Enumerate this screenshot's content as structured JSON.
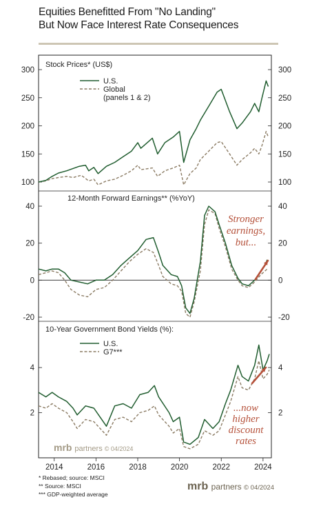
{
  "title_line1": "Equities Benefitted From \"No Landing\"",
  "title_line2": "But Now Face Interest Rate Consequences",
  "colors": {
    "us": "#1f5c2e",
    "global": "#8a7a62",
    "arrow": "#b5513a",
    "annotation": "#b5513a"
  },
  "chart_data": [
    {
      "type": "line",
      "title": "Stock Prices* (US$)",
      "ylim": [
        100,
        300
      ],
      "yticks": [
        100,
        150,
        200,
        250,
        300
      ],
      "legend": {
        "placement": "top-left",
        "entries": [
          "U.S.",
          "Global",
          "(panels 1 & 2)"
        ]
      },
      "series": [
        {
          "name": "U.S.",
          "points": [
            [
              2013.25,
              100
            ],
            [
              2013.6,
              103
            ],
            [
              2013.9,
              110
            ],
            [
              2014.2,
              116
            ],
            [
              2014.6,
              120
            ],
            [
              2014.9,
              124
            ],
            [
              2015.2,
              128
            ],
            [
              2015.5,
              130
            ],
            [
              2015.65,
              120
            ],
            [
              2015.9,
              126
            ],
            [
              2016.1,
              115
            ],
            [
              2016.5,
              128
            ],
            [
              2016.9,
              135
            ],
            [
              2017.3,
              145
            ],
            [
              2017.7,
              155
            ],
            [
              2018.0,
              170
            ],
            [
              2018.15,
              160
            ],
            [
              2018.7,
              178
            ],
            [
              2018.95,
              150
            ],
            [
              2019.3,
              170
            ],
            [
              2019.7,
              180
            ],
            [
              2020.0,
              190
            ],
            [
              2020.2,
              135
            ],
            [
              2020.5,
              175
            ],
            [
              2020.8,
              195
            ],
            [
              2021.0,
              210
            ],
            [
              2021.4,
              235
            ],
            [
              2021.8,
              260
            ],
            [
              2022.0,
              265
            ],
            [
              2022.4,
              225
            ],
            [
              2022.75,
              195
            ],
            [
              2023.0,
              205
            ],
            [
              2023.4,
              225
            ],
            [
              2023.6,
              240
            ],
            [
              2023.8,
              225
            ],
            [
              2023.95,
              250
            ],
            [
              2024.15,
              280
            ],
            [
              2024.25,
              270
            ]
          ]
        },
        {
          "name": "Global",
          "points": [
            [
              2013.25,
              100
            ],
            [
              2013.6,
              102
            ],
            [
              2013.9,
              106
            ],
            [
              2014.2,
              108
            ],
            [
              2014.6,
              110
            ],
            [
              2014.9,
              108
            ],
            [
              2015.3,
              112
            ],
            [
              2015.65,
              102
            ],
            [
              2015.9,
              105
            ],
            [
              2016.1,
              95
            ],
            [
              2016.5,
              102
            ],
            [
              2016.9,
              105
            ],
            [
              2017.3,
              112
            ],
            [
              2017.7,
              120
            ],
            [
              2018.0,
              130
            ],
            [
              2018.15,
              122
            ],
            [
              2018.7,
              125
            ],
            [
              2018.95,
              110
            ],
            [
              2019.3,
              120
            ],
            [
              2019.7,
              125
            ],
            [
              2020.0,
              130
            ],
            [
              2020.2,
              95
            ],
            [
              2020.5,
              115
            ],
            [
              2020.8,
              125
            ],
            [
              2021.0,
              140
            ],
            [
              2021.4,
              155
            ],
            [
              2021.8,
              170
            ],
            [
              2022.0,
              172
            ],
            [
              2022.4,
              150
            ],
            [
              2022.75,
              130
            ],
            [
              2023.0,
              140
            ],
            [
              2023.4,
              152
            ],
            [
              2023.6,
              160
            ],
            [
              2023.8,
              150
            ],
            [
              2023.95,
              165
            ],
            [
              2024.15,
              190
            ],
            [
              2024.25,
              180
            ]
          ]
        }
      ]
    },
    {
      "type": "line",
      "title": "12-Month Forward Earnings** (%YoY)",
      "ylim": [
        -20,
        40
      ],
      "yticks": [
        -20,
        0,
        20,
        40
      ],
      "annotation": [
        "Stronger",
        "earnings,",
        "but..."
      ],
      "series": [
        {
          "name": "U.S.",
          "points": [
            [
              2013.25,
              6
            ],
            [
              2013.6,
              5
            ],
            [
              2013.9,
              6
            ],
            [
              2014.2,
              6
            ],
            [
              2014.5,
              4
            ],
            [
              2014.8,
              0
            ],
            [
              2015.2,
              -1
            ],
            [
              2015.6,
              -2
            ],
            [
              2016.0,
              0
            ],
            [
              2016.4,
              0
            ],
            [
              2016.8,
              3
            ],
            [
              2017.2,
              8
            ],
            [
              2017.6,
              12
            ],
            [
              2018.0,
              16
            ],
            [
              2018.4,
              22
            ],
            [
              2018.75,
              23
            ],
            [
              2019.0,
              15
            ],
            [
              2019.2,
              8
            ],
            [
              2019.6,
              3
            ],
            [
              2019.9,
              2
            ],
            [
              2020.1,
              -3
            ],
            [
              2020.3,
              -15
            ],
            [
              2020.5,
              -18
            ],
            [
              2020.7,
              -10
            ],
            [
              2021.0,
              10
            ],
            [
              2021.2,
              35
            ],
            [
              2021.4,
              40
            ],
            [
              2021.7,
              37
            ],
            [
              2021.9,
              30
            ],
            [
              2022.2,
              20
            ],
            [
              2022.5,
              8
            ],
            [
              2022.8,
              1
            ],
            [
              2023.0,
              -2
            ],
            [
              2023.3,
              -3
            ],
            [
              2023.6,
              0
            ],
            [
              2023.9,
              5
            ],
            [
              2024.1,
              8
            ],
            [
              2024.2,
              11
            ]
          ]
        },
        {
          "name": "Global",
          "points": [
            [
              2013.25,
              3
            ],
            [
              2013.6,
              4
            ],
            [
              2013.9,
              5
            ],
            [
              2014.2,
              4
            ],
            [
              2014.5,
              0
            ],
            [
              2014.8,
              -5
            ],
            [
              2015.2,
              -8
            ],
            [
              2015.6,
              -9
            ],
            [
              2016.0,
              -5
            ],
            [
              2016.4,
              -4
            ],
            [
              2016.8,
              0
            ],
            [
              2017.2,
              5
            ],
            [
              2017.6,
              10
            ],
            [
              2018.0,
              14
            ],
            [
              2018.4,
              17
            ],
            [
              2018.75,
              15
            ],
            [
              2019.0,
              8
            ],
            [
              2019.2,
              2
            ],
            [
              2019.6,
              -2
            ],
            [
              2019.9,
              -3
            ],
            [
              2020.1,
              -6
            ],
            [
              2020.3,
              -18
            ],
            [
              2020.5,
              -20
            ],
            [
              2020.7,
              -12
            ],
            [
              2021.0,
              5
            ],
            [
              2021.2,
              30
            ],
            [
              2021.4,
              38
            ],
            [
              2021.7,
              36
            ],
            [
              2021.9,
              28
            ],
            [
              2022.2,
              18
            ],
            [
              2022.5,
              6
            ],
            [
              2022.8,
              0
            ],
            [
              2023.0,
              -3
            ],
            [
              2023.3,
              -4
            ],
            [
              2023.6,
              -1
            ],
            [
              2023.9,
              3
            ],
            [
              2024.1,
              5
            ],
            [
              2024.2,
              6
            ]
          ]
        }
      ]
    },
    {
      "type": "line",
      "title": "10-Year Government Bond Yields (%):",
      "ylim": [
        0,
        5.5
      ],
      "yticks": [
        2,
        4
      ],
      "xlim": [
        2013.25,
        2024.4
      ],
      "xticks": [
        2014,
        2016,
        2018,
        2020,
        2022,
        2024
      ],
      "legend": {
        "placement": "top-left",
        "entries": [
          "U.S.",
          "G7***"
        ]
      },
      "annotation": [
        "...now",
        "higher",
        "discount",
        "rates"
      ],
      "series": [
        {
          "name": "U.S.",
          "points": [
            [
              2013.25,
              2.9
            ],
            [
              2013.6,
              2.7
            ],
            [
              2013.9,
              2.9
            ],
            [
              2014.2,
              2.7
            ],
            [
              2014.6,
              2.5
            ],
            [
              2014.9,
              2.2
            ],
            [
              2015.1,
              1.9
            ],
            [
              2015.5,
              2.3
            ],
            [
              2015.9,
              2.2
            ],
            [
              2016.2,
              1.8
            ],
            [
              2016.5,
              1.4
            ],
            [
              2016.9,
              2.3
            ],
            [
              2017.3,
              2.4
            ],
            [
              2017.7,
              2.2
            ],
            [
              2018.1,
              2.8
            ],
            [
              2018.5,
              2.9
            ],
            [
              2018.8,
              3.2
            ],
            [
              2019.0,
              2.7
            ],
            [
              2019.5,
              2.0
            ],
            [
              2019.7,
              1.6
            ],
            [
              2020.0,
              1.8
            ],
            [
              2020.2,
              0.7
            ],
            [
              2020.5,
              0.6
            ],
            [
              2020.9,
              0.9
            ],
            [
              2021.2,
              1.7
            ],
            [
              2021.6,
              1.3
            ],
            [
              2021.9,
              1.6
            ],
            [
              2022.2,
              2.4
            ],
            [
              2022.45,
              3.0
            ],
            [
              2022.8,
              4.1
            ],
            [
              2023.0,
              3.6
            ],
            [
              2023.3,
              3.4
            ],
            [
              2023.6,
              4.1
            ],
            [
              2023.8,
              5.0
            ],
            [
              2024.0,
              3.9
            ],
            [
              2024.2,
              4.3
            ],
            [
              2024.3,
              4.6
            ]
          ]
        },
        {
          "name": "G7***",
          "points": [
            [
              2013.25,
              2.3
            ],
            [
              2013.6,
              2.2
            ],
            [
              2013.9,
              2.4
            ],
            [
              2014.2,
              2.2
            ],
            [
              2014.6,
              2.0
            ],
            [
              2014.9,
              1.6
            ],
            [
              2015.1,
              1.3
            ],
            [
              2015.5,
              1.7
            ],
            [
              2015.9,
              1.6
            ],
            [
              2016.2,
              1.3
            ],
            [
              2016.5,
              1.0
            ],
            [
              2016.9,
              1.7
            ],
            [
              2017.3,
              1.8
            ],
            [
              2017.7,
              1.6
            ],
            [
              2018.1,
              2.0
            ],
            [
              2018.5,
              2.1
            ],
            [
              2018.8,
              2.3
            ],
            [
              2019.0,
              1.9
            ],
            [
              2019.5,
              1.4
            ],
            [
              2019.7,
              1.1
            ],
            [
              2020.0,
              1.3
            ],
            [
              2020.2,
              0.5
            ],
            [
              2020.5,
              0.4
            ],
            [
              2020.9,
              0.6
            ],
            [
              2021.2,
              1.2
            ],
            [
              2021.6,
              1.0
            ],
            [
              2021.9,
              1.2
            ],
            [
              2022.2,
              1.9
            ],
            [
              2022.45,
              2.5
            ],
            [
              2022.8,
              3.6
            ],
            [
              2023.0,
              3.1
            ],
            [
              2023.3,
              3.0
            ],
            [
              2023.6,
              3.5
            ],
            [
              2023.8,
              4.3
            ],
            [
              2024.0,
              3.5
            ],
            [
              2024.2,
              3.7
            ],
            [
              2024.3,
              3.9
            ]
          ]
        }
      ]
    }
  ],
  "brand_name": "mrb",
  "brand_suffix": "partners",
  "brand_date": "© 04/2024",
  "footnotes": [
    "*   Rebased; source: MSCI",
    "**  Source: MSCI",
    "*** GDP-weighted average"
  ]
}
